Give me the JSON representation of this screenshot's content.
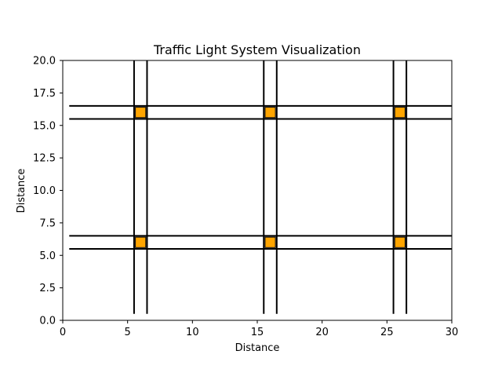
{
  "chart_data": {
    "type": "line",
    "title": "Traffic Light System Visualization",
    "xlabel": "Distance",
    "ylabel": "Distance",
    "xlim": [
      0,
      30
    ],
    "ylim": [
      0,
      20
    ],
    "x_ticks": [
      0,
      5,
      10,
      15,
      20,
      25,
      30
    ],
    "x_tick_labels": [
      "0",
      "5",
      "10",
      "15",
      "20",
      "25",
      "30"
    ],
    "y_ticks": [
      0,
      2.5,
      5,
      7.5,
      10,
      12.5,
      15,
      17.5,
      20
    ],
    "y_tick_labels": [
      "0.0",
      "2.5",
      "5.0",
      "7.5",
      "10.0",
      "12.5",
      "15.0",
      "17.5",
      "20.0"
    ],
    "grid": false,
    "road_color": "#000000",
    "light_color": "#FFA500",
    "horizontal_roads": [
      {
        "y": 5.5,
        "x_start": 0.5,
        "x_end": 30
      },
      {
        "y": 6.5,
        "x_start": 0.5,
        "x_end": 30
      },
      {
        "y": 15.5,
        "x_start": 0.5,
        "x_end": 30
      },
      {
        "y": 16.5,
        "x_start": 0.5,
        "x_end": 30
      }
    ],
    "vertical_roads": [
      {
        "x": 5.5,
        "y_start": 0.5,
        "y_end": 20
      },
      {
        "x": 6.5,
        "y_start": 0.5,
        "y_end": 20
      },
      {
        "x": 15.5,
        "y_start": 0.5,
        "y_end": 20
      },
      {
        "x": 16.5,
        "y_start": 0.5,
        "y_end": 20
      },
      {
        "x": 25.5,
        "y_start": 0.5,
        "y_end": 20
      },
      {
        "x": 26.5,
        "y_start": 0.5,
        "y_end": 20
      }
    ],
    "traffic_lights": [
      {
        "x": 6,
        "y": 6
      },
      {
        "x": 16,
        "y": 6
      },
      {
        "x": 26,
        "y": 6
      },
      {
        "x": 6,
        "y": 16
      },
      {
        "x": 16,
        "y": 16
      },
      {
        "x": 26,
        "y": 16
      }
    ],
    "light_size": 0.8
  }
}
